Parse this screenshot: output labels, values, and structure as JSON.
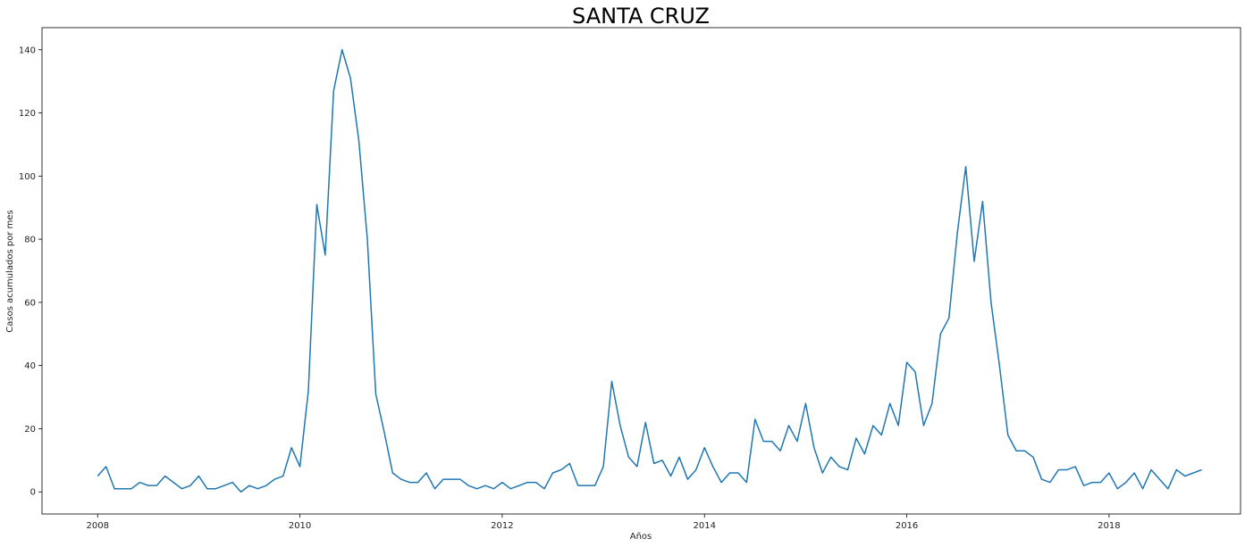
{
  "chart_data": {
    "type": "line",
    "title": "SANTA CRUZ",
    "xlabel": "Años",
    "ylabel": "Casos acumulados por mes",
    "xlim": [
      2007.45,
      2019.3
    ],
    "ylim": [
      -7,
      147
    ],
    "xticks": [
      2008,
      2010,
      2012,
      2014,
      2016,
      2018
    ],
    "xtick_labels": [
      "2008",
      "2010",
      "2012",
      "2014",
      "2016",
      "2018"
    ],
    "yticks": [
      0,
      20,
      40,
      60,
      80,
      100,
      120,
      140
    ],
    "ytick_labels": [
      "0",
      "20",
      "40",
      "60",
      "80",
      "100",
      "120",
      "140"
    ],
    "grid": false,
    "legend": false,
    "line_color": "#1f77b4",
    "series": [
      {
        "start": "2008-01",
        "frequency": "monthly",
        "values": [
          5,
          8,
          1,
          1,
          1,
          3,
          2,
          2,
          5,
          3,
          1,
          2,
          5,
          1,
          1,
          2,
          3,
          0,
          2,
          1,
          2,
          4,
          5,
          14,
          8,
          32,
          91,
          75,
          127,
          140,
          131,
          111,
          80,
          31,
          19,
          6,
          4,
          3,
          3,
          6,
          1,
          4,
          4,
          4,
          2,
          1,
          2,
          1,
          3,
          1,
          2,
          3,
          3,
          1,
          6,
          7,
          9,
          2,
          2,
          2,
          8,
          35,
          21,
          11,
          8,
          22,
          9,
          10,
          5,
          11,
          4,
          7,
          14,
          8,
          3,
          6,
          6,
          3,
          23,
          16,
          16,
          13,
          21,
          16,
          28,
          14,
          6,
          11,
          8,
          7,
          17,
          12,
          21,
          18,
          28,
          21,
          41,
          38,
          21,
          28,
          50,
          55,
          82,
          103,
          73,
          92,
          60,
          40,
          18,
          13,
          13,
          11,
          4,
          3,
          7,
          7,
          8,
          2,
          3,
          3,
          6,
          1,
          3,
          6,
          1,
          7,
          4,
          1,
          7,
          5,
          6,
          7
        ]
      }
    ]
  }
}
